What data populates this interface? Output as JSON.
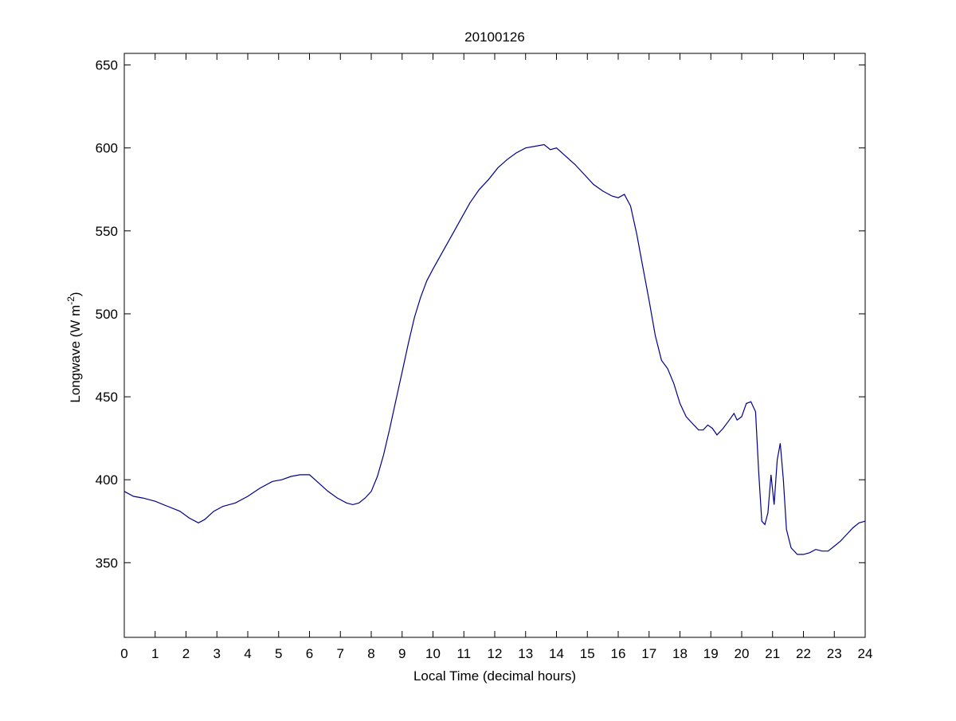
{
  "chart_data": {
    "type": "line",
    "title": "20100126",
    "xlabel": "Local Time (decimal hours)",
    "ylabel": {
      "main": "Longwave (W m",
      "superscript": "-2",
      "suffix": ")"
    },
    "xlim": [
      0,
      24
    ],
    "ylim": [
      305,
      657
    ],
    "xticks": [
      0,
      1,
      2,
      3,
      4,
      5,
      6,
      7,
      8,
      9,
      10,
      11,
      12,
      13,
      14,
      15,
      16,
      17,
      18,
      19,
      20,
      21,
      22,
      23,
      24
    ],
    "yticks": [
      350,
      400,
      450,
      500,
      550,
      600,
      650
    ],
    "grid": false,
    "line_color": "#00008b",
    "series": [
      {
        "x": [
          0,
          0.3,
          0.6,
          1.0,
          1.4,
          1.8,
          2.1,
          2.4,
          2.6,
          2.9,
          3.2,
          3.6,
          4.0,
          4.4,
          4.8,
          5.1,
          5.4,
          5.7,
          6.0,
          6.3,
          6.6,
          6.9,
          7.2,
          7.4,
          7.6,
          7.8,
          8.0,
          8.2,
          8.4,
          8.6,
          8.8,
          9.0,
          9.2,
          9.4,
          9.6,
          9.8,
          10.0,
          10.3,
          10.6,
          10.9,
          11.2,
          11.5,
          11.8,
          12.1,
          12.4,
          12.7,
          13.0,
          13.3,
          13.6,
          13.8,
          14.0,
          14.3,
          14.6,
          14.9,
          15.2,
          15.5,
          15.8,
          16.0,
          16.2,
          16.4,
          16.6,
          16.8,
          17.0,
          17.2,
          17.4,
          17.6,
          17.8,
          18.0,
          18.2,
          18.4,
          18.6,
          18.75,
          18.9,
          19.05,
          19.2,
          19.4,
          19.6,
          19.75,
          19.85,
          20.0,
          20.15,
          20.3,
          20.45,
          20.55,
          20.65,
          20.75,
          20.85,
          20.95,
          21.05,
          21.15,
          21.25,
          21.35,
          21.45,
          21.6,
          21.8,
          22.0,
          22.2,
          22.4,
          22.6,
          22.8,
          23.0,
          23.2,
          23.4,
          23.6,
          23.8,
          24.0
        ],
        "y": [
          393,
          390,
          389,
          387,
          384,
          381,
          377,
          374,
          376,
          381,
          384,
          386,
          390,
          395,
          399,
          400,
          402,
          403,
          403,
          398,
          393,
          389,
          386,
          385,
          386,
          389,
          393,
          402,
          415,
          431,
          448,
          465,
          482,
          498,
          510,
          520,
          527,
          537,
          547,
          557,
          567,
          575,
          581,
          588,
          593,
          597,
          600,
          601,
          602,
          599,
          600,
          595,
          590,
          584,
          578,
          574,
          571,
          570,
          572,
          565,
          548,
          528,
          508,
          487,
          472,
          467,
          458,
          446,
          438,
          434,
          430,
          430,
          433,
          431,
          427,
          431,
          436,
          440,
          436,
          438,
          446,
          447,
          441,
          405,
          375,
          373,
          380,
          403,
          385,
          412,
          422,
          400,
          370,
          359,
          355,
          355,
          356,
          358,
          357,
          357,
          360,
          363,
          367,
          371,
          374,
          375
        ]
      }
    ]
  }
}
